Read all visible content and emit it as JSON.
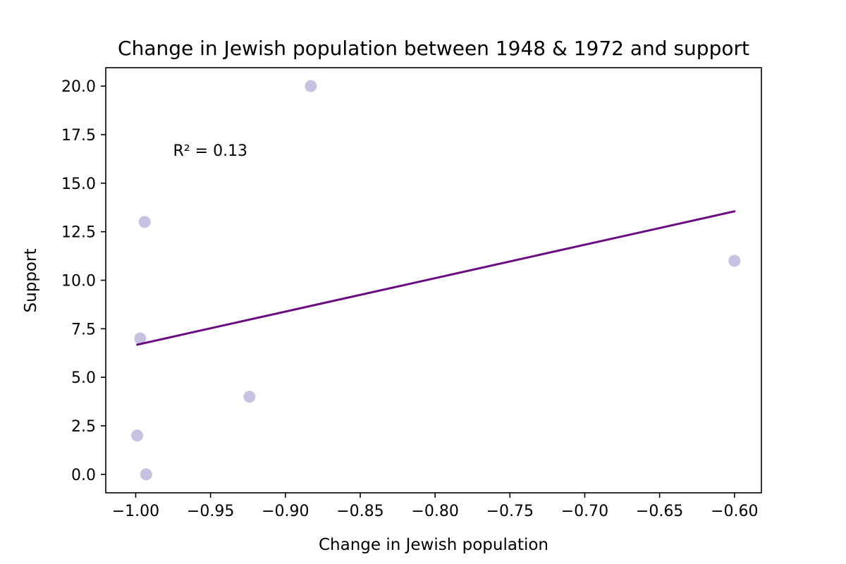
{
  "chart_data": {
    "type": "scatter",
    "title": "Change in Jewish population between 1948 & 1972 and support",
    "xlabel": "Change in Jewish population",
    "ylabel": "Support",
    "xlim": [
      -1.02,
      -0.582
    ],
    "ylim": [
      -0.95,
      20.95
    ],
    "x_ticks": [
      -1.0,
      -0.95,
      -0.9,
      -0.85,
      -0.8,
      -0.75,
      -0.7,
      -0.65,
      -0.6
    ],
    "x_tick_labels": [
      "−1.00",
      "−0.95",
      "−0.90",
      "−0.85",
      "−0.80",
      "−0.75",
      "−0.70",
      "−0.65",
      "−0.60"
    ],
    "y_ticks": [
      0.0,
      2.5,
      5.0,
      7.5,
      10.0,
      12.5,
      15.0,
      17.5,
      20.0
    ],
    "y_tick_labels": [
      "0.0",
      "2.5",
      "5.0",
      "7.5",
      "10.0",
      "12.5",
      "15.0",
      "17.5",
      "20.0"
    ],
    "grid": false,
    "series": [
      {
        "type": "scatter",
        "color": "#c8c2e2",
        "x": [
          -0.883,
          -0.994,
          -0.997,
          -0.6,
          -0.924,
          -0.999,
          -0.993
        ],
        "y": [
          20,
          13,
          7,
          11,
          4,
          2,
          0
        ]
      },
      {
        "type": "line",
        "color": "#6a0d83",
        "x": [
          -0.999,
          -0.6
        ],
        "y": [
          6.68,
          13.55
        ]
      }
    ],
    "annotation": {
      "text": "R² = 0.13",
      "x": -0.975,
      "y": 16.7
    }
  }
}
